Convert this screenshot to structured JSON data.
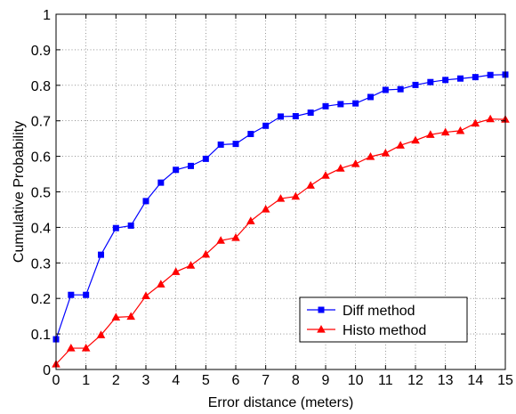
{
  "chart_data": {
    "type": "line",
    "title": "",
    "xlabel": "Error distance (meters)",
    "ylabel": "Cumulative Probability",
    "xlim": [
      0,
      15
    ],
    "ylim": [
      0,
      1
    ],
    "grid": true,
    "legend_position": "bottom-right",
    "x_ticks": [
      0,
      1,
      2,
      3,
      4,
      5,
      6,
      7,
      8,
      9,
      10,
      11,
      12,
      13,
      14,
      15
    ],
    "y_ticks": [
      0,
      0.1,
      0.2,
      0.3,
      0.4,
      0.5,
      0.6,
      0.7,
      0.8,
      0.9,
      1
    ],
    "x_tick_labels": [
      "0",
      "1",
      "2",
      "3",
      "4",
      "5",
      "6",
      "7",
      "8",
      "9",
      "10",
      "11",
      "12",
      "13",
      "14",
      "15"
    ],
    "y_tick_labels": [
      "0",
      "0.1",
      "0.2",
      "0.3",
      "0.4",
      "0.5",
      "0.6",
      "0.7",
      "0.8",
      "0.9",
      "1"
    ],
    "series": [
      {
        "name": "Diff method",
        "color": "#0000ff",
        "marker": "square",
        "x": [
          0,
          0.5,
          1,
          1.5,
          2,
          2.5,
          3,
          3.5,
          4,
          4.5,
          5,
          5.5,
          6,
          6.5,
          7,
          7.5,
          8,
          8.5,
          9,
          9.5,
          10,
          10.5,
          11,
          11.5,
          12,
          12.5,
          13,
          13.5,
          14,
          14.5,
          15
        ],
        "y": [
          0.085,
          0.21,
          0.21,
          0.323,
          0.398,
          0.405,
          0.474,
          0.526,
          0.562,
          0.573,
          0.593,
          0.633,
          0.635,
          0.663,
          0.686,
          0.712,
          0.713,
          0.723,
          0.741,
          0.747,
          0.749,
          0.767,
          0.787,
          0.789,
          0.801,
          0.809,
          0.815,
          0.819,
          0.823,
          0.829,
          0.83
        ]
      },
      {
        "name": "Histo method",
        "color": "#ff0000",
        "marker": "triangle",
        "x": [
          0,
          0.5,
          1,
          1.5,
          2,
          2.5,
          3,
          3.5,
          4,
          4.5,
          5,
          5.5,
          6,
          6.5,
          7,
          7.5,
          8,
          8.5,
          9,
          9.5,
          10,
          10.5,
          11,
          11.5,
          12,
          12.5,
          13,
          13.5,
          14,
          14.5,
          15
        ],
        "y": [
          0.015,
          0.06,
          0.06,
          0.097,
          0.147,
          0.149,
          0.207,
          0.24,
          0.275,
          0.293,
          0.324,
          0.363,
          0.371,
          0.418,
          0.451,
          0.481,
          0.487,
          0.518,
          0.546,
          0.566,
          0.579,
          0.599,
          0.609,
          0.631,
          0.645,
          0.661,
          0.668,
          0.672,
          0.693,
          0.705,
          0.704
        ]
      }
    ]
  }
}
